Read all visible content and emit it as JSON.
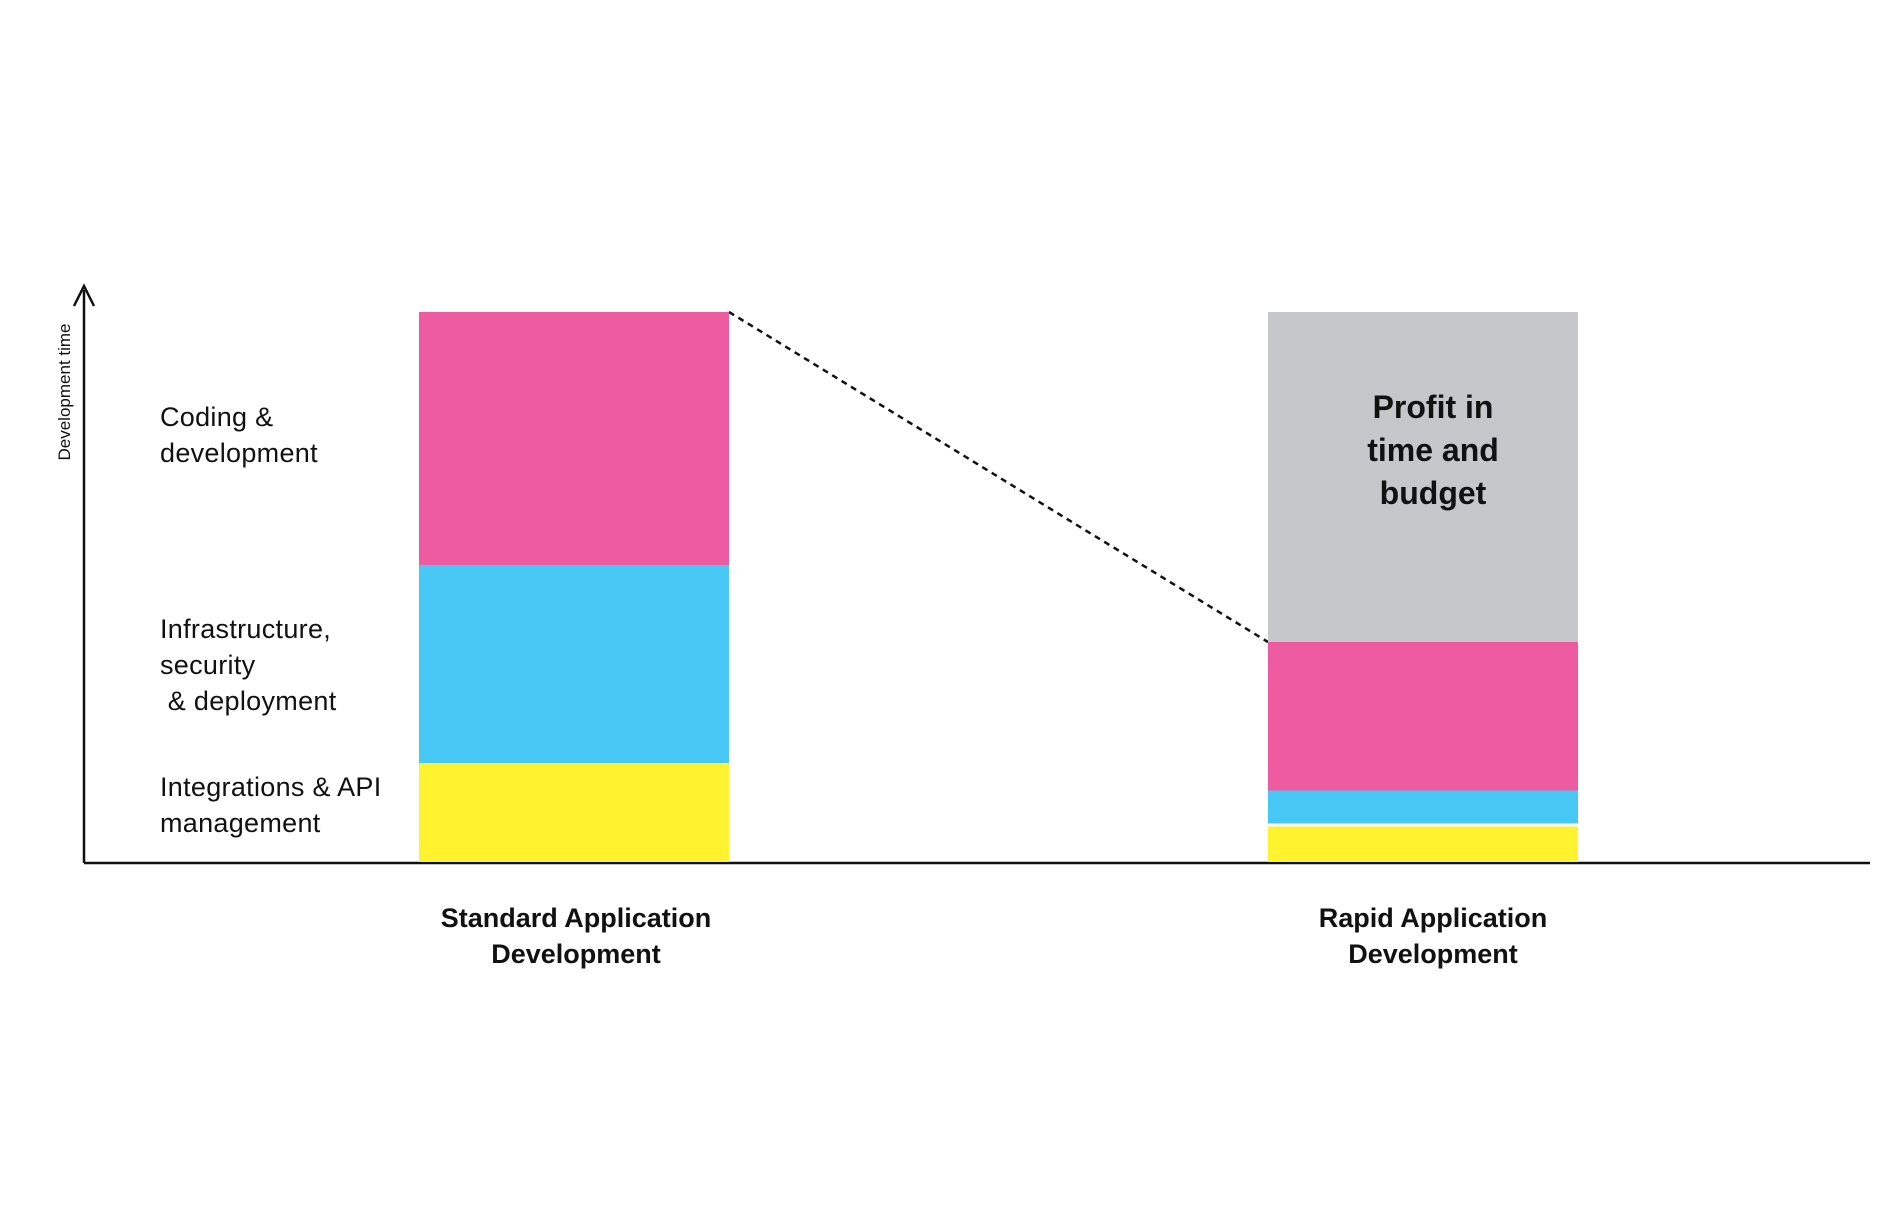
{
  "chart_data": {
    "type": "bar",
    "stacked": true,
    "ylabel": "Development time",
    "xlabel": "",
    "title": "",
    "ylim": [
      0,
      100
    ],
    "grid": false,
    "categories": [
      "Standard Application Development",
      "Rapid Application Development"
    ],
    "category_labels": [
      [
        "Standard Application",
        "Development"
      ],
      [
        "Rapid Application",
        "Development"
      ]
    ],
    "series": [
      {
        "name": "Integrations & API management",
        "label_lines": [
          "Integrations & API",
          "management"
        ],
        "color": "#FFF22E",
        "values": [
          18,
          7
        ]
      },
      {
        "name": "Infrastructure, security & deployment",
        "label_lines": [
          "Infrastructure,",
          "security",
          " & deployment"
        ],
        "color": "#47C8F5",
        "values": [
          36,
          6
        ]
      },
      {
        "name": "Coding & development",
        "label_lines": [
          "Coding &",
          "development"
        ],
        "color": "#EE5BA0",
        "values": [
          46,
          27
        ]
      }
    ],
    "profit": {
      "category_index": 1,
      "value": 60,
      "color": "#C6C7CA",
      "label_lines": [
        "Profit in",
        "time and",
        "budget"
      ]
    },
    "connector": {
      "style": "dashed",
      "from": "top of Standard Application Development",
      "to": "top of Rapid Application Development stacked segments"
    },
    "legend_placement": "left"
  }
}
